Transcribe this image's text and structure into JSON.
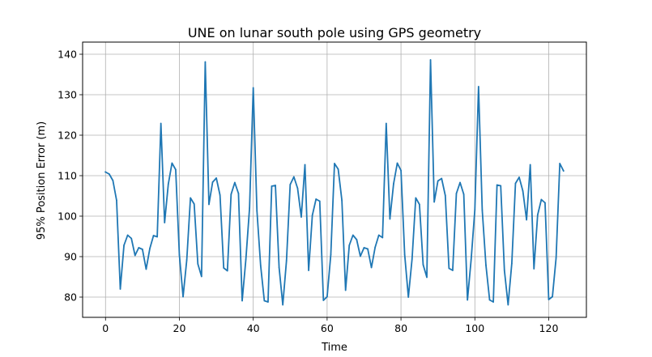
{
  "chart_data": {
    "type": "line",
    "title": "UNE on lunar south pole using GPS geometry",
    "xlabel": "Time",
    "ylabel": "95% Position Error (m)",
    "xlim": [
      -6.2,
      130.2
    ],
    "ylim": [
      75.0,
      143.0
    ],
    "xticks": [
      0,
      20,
      40,
      60,
      80,
      100,
      120
    ],
    "yticks": [
      80,
      90,
      100,
      110,
      120,
      130,
      140
    ],
    "grid": true,
    "line_color": "#1f77b4",
    "series": [
      {
        "x": [
          0,
          1,
          2,
          3,
          4,
          5,
          6,
          7,
          8,
          9,
          10,
          11,
          12,
          13,
          14,
          15,
          16,
          17,
          18,
          19,
          20,
          21,
          22,
          23,
          24,
          25,
          26,
          27,
          28,
          29,
          30,
          31,
          32,
          33,
          34,
          35,
          36,
          37,
          38,
          39,
          40,
          41,
          42,
          43,
          44,
          45,
          46,
          47,
          48,
          49,
          50,
          51,
          52,
          53,
          54,
          55,
          56,
          57,
          58,
          59,
          60,
          61,
          62,
          63,
          64,
          65,
          66,
          67,
          68,
          69,
          70,
          71,
          72,
          73,
          74,
          75,
          76,
          77,
          78,
          79,
          80,
          81,
          82,
          83,
          84,
          85,
          86,
          87,
          88,
          89,
          90,
          91,
          92,
          93,
          94,
          95,
          96,
          97,
          98,
          99,
          100,
          101,
          102,
          103,
          104,
          105,
          106,
          107,
          108,
          109,
          110,
          111,
          112,
          113,
          114,
          115,
          116,
          117,
          118,
          119,
          120,
          121,
          122,
          123,
          124
        ],
        "values": [
          110.9,
          110.4,
          108.8,
          103.9,
          82.0,
          92.8,
          95.3,
          94.5,
          90.3,
          92.2,
          91.8,
          86.9,
          92.0,
          95.2,
          94.9,
          122.9,
          98.4,
          107.9,
          113.1,
          111.5,
          90.4,
          80.1,
          89.2,
          104.5,
          103.0,
          88.2,
          85.1,
          138.1,
          102.9,
          108.4,
          109.4,
          105.2,
          87.2,
          86.5,
          105.4,
          108.3,
          105.6,
          79.1,
          89.3,
          102.0,
          131.7,
          101.3,
          87.8,
          79.1,
          78.8,
          107.4,
          107.6,
          87.3,
          78.1,
          89.0,
          107.8,
          109.7,
          106.9,
          99.8,
          112.7,
          86.6,
          100.2,
          104.2,
          103.7,
          79.2,
          80.1,
          90.5,
          113.0,
          111.6,
          103.9,
          81.7,
          92.8,
          95.3,
          94.2,
          90.1,
          92.2,
          91.9,
          87.3,
          92.3,
          95.3,
          94.7,
          122.9,
          99.3,
          108.0,
          113.1,
          111.3,
          90.5,
          80.0,
          89.4,
          104.5,
          102.9,
          88.0,
          84.9,
          138.6,
          103.5,
          108.7,
          109.3,
          105.1,
          87.1,
          86.6,
          105.6,
          108.3,
          105.4,
          79.3,
          89.3,
          101.6,
          132.0,
          101.5,
          87.9,
          79.3,
          78.8,
          107.7,
          107.5,
          86.6,
          78.1,
          88.3,
          108.1,
          109.6,
          106.2,
          99.1,
          112.7,
          87.0,
          100.3,
          104.1,
          103.3,
          79.4,
          80.1,
          89.7,
          113.0,
          111.2
        ]
      }
    ]
  }
}
